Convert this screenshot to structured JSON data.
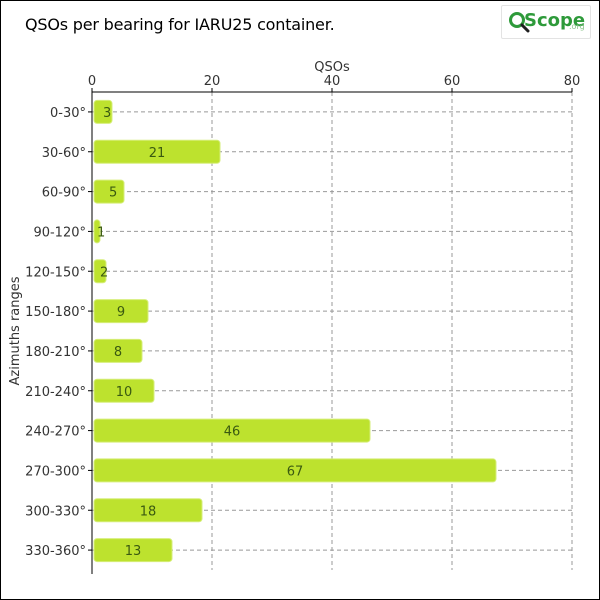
{
  "header": {
    "title": "QSOs per bearing for IARU25 container."
  },
  "logo": {
    "word": "Scope",
    "tld": ".org"
  },
  "colors": {
    "bar": "#bde22e",
    "bar_border": "#d6ee7a",
    "grid": "#999999",
    "axis": "#000000",
    "logo_green": "#2e9a3a"
  },
  "chart_data": {
    "type": "bar",
    "orientation": "horizontal",
    "title": "QSOs per bearing for IARU25 container.",
    "xlabel": "QSOs",
    "ylabel": "Azimuths ranges",
    "xlim": [
      0,
      80
    ],
    "x_ticks": [
      0,
      20,
      40,
      60,
      80
    ],
    "x_axis_position": "top",
    "grid": true,
    "categories": [
      "0-30°",
      "30-60°",
      "60-90°",
      "90-120°",
      "120-150°",
      "150-180°",
      "180-210°",
      "210-240°",
      "240-270°",
      "270-300°",
      "300-330°",
      "330-360°"
    ],
    "values": [
      3,
      21,
      5,
      1,
      2,
      9,
      8,
      10,
      46,
      67,
      18,
      13
    ]
  }
}
